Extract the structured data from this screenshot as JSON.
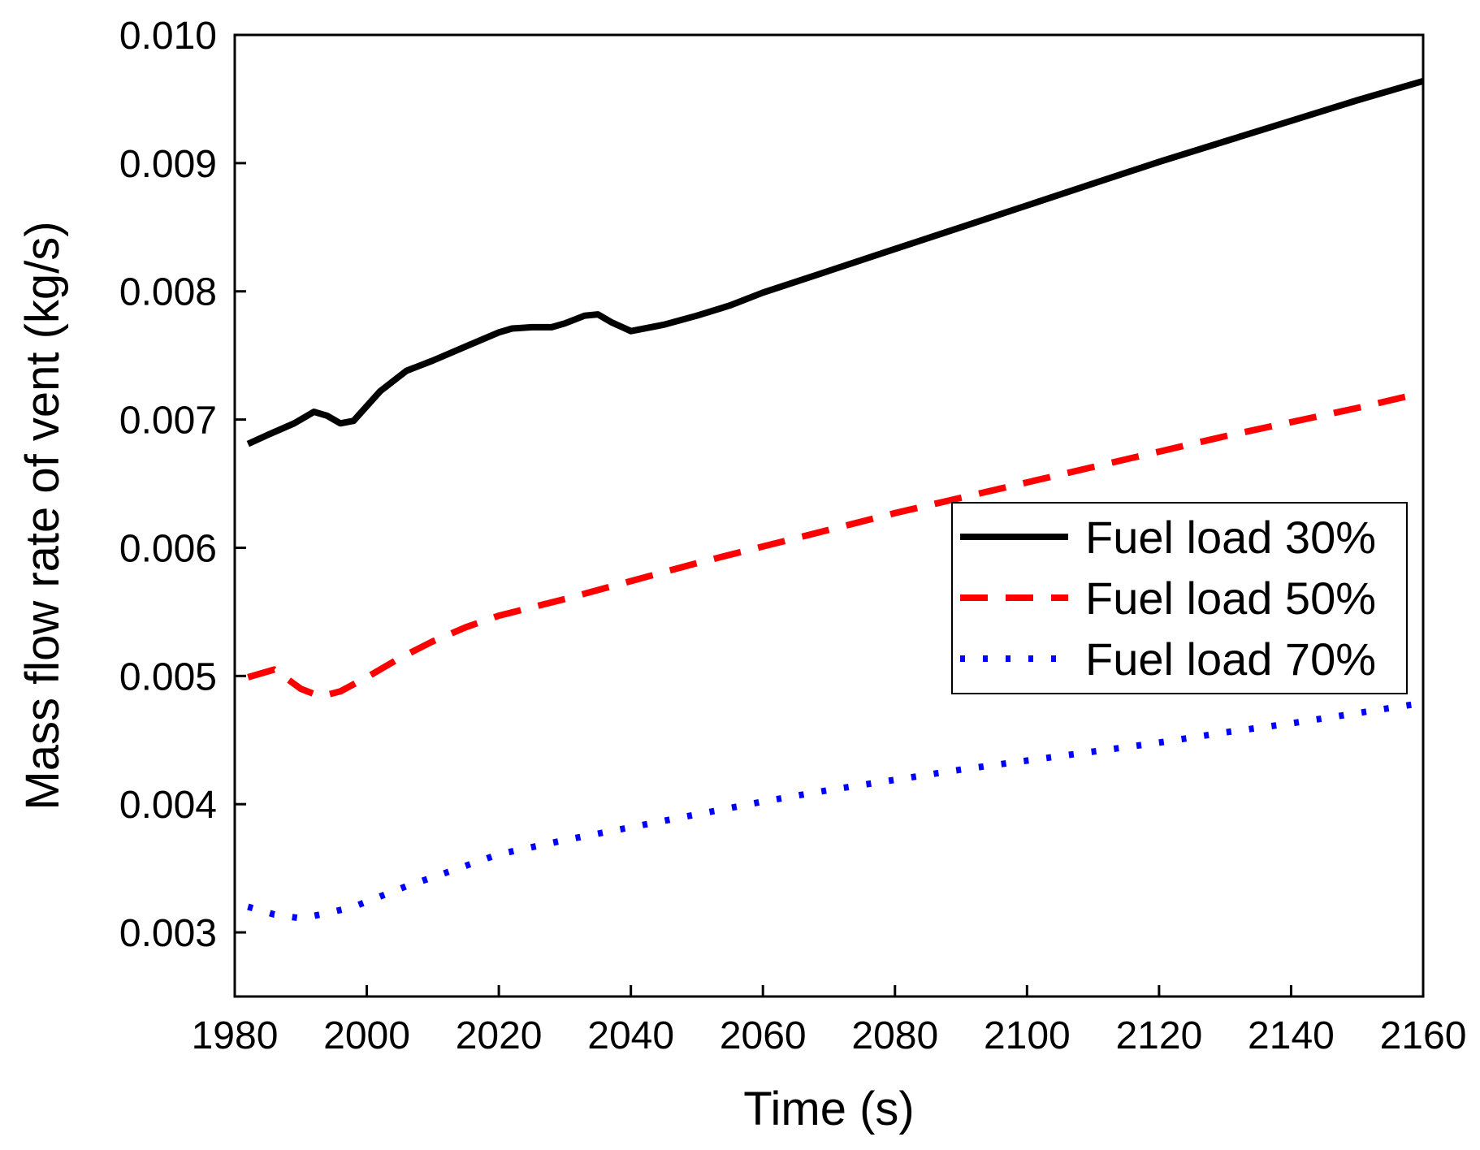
{
  "chart_data": {
    "type": "line",
    "title": "",
    "xlabel": "Time (s)",
    "ylabel": "Mass flow rate of vent (kg/s)",
    "xlim": [
      1980,
      2160
    ],
    "ylim": [
      0.0025,
      0.01
    ],
    "xticks": [
      1980,
      2000,
      2020,
      2040,
      2060,
      2080,
      2100,
      2120,
      2140,
      2160
    ],
    "xtick_labels": [
      "1980",
      "2000",
      "2020",
      "2040",
      "2060",
      "2080",
      "2100",
      "2120",
      "2140",
      "2160"
    ],
    "yticks": [
      0.003,
      0.004,
      0.005,
      0.006,
      0.007,
      0.008,
      0.009,
      0.01
    ],
    "ytick_labels": [
      "0.003",
      "0.004",
      "0.005",
      "0.006",
      "0.007",
      "0.008",
      "0.009",
      "0.010"
    ],
    "grid": false,
    "legend_position": "right-center",
    "series": [
      {
        "name": "Fuel load 30%",
        "color": "#000000",
        "style": "solid",
        "x": [
          1982,
          1985,
          1989,
          1992,
          1994,
          1996,
          1998,
          2002,
          2006,
          2010,
          2015,
          2020,
          2022,
          2025,
          2028,
          2030,
          2033,
          2035,
          2037,
          2040,
          2045,
          2050,
          2055,
          2060,
          2070,
          2080,
          2090,
          2100,
          2110,
          2120,
          2130,
          2140,
          2150,
          2160
        ],
        "y": [
          0.00681,
          0.00688,
          0.00697,
          0.00706,
          0.00703,
          0.00697,
          0.00699,
          0.00722,
          0.00738,
          0.00746,
          0.00757,
          0.00768,
          0.00771,
          0.00772,
          0.00772,
          0.00775,
          0.00781,
          0.00782,
          0.00776,
          0.00769,
          0.00774,
          0.00781,
          0.00789,
          0.00799,
          0.00816,
          0.00833,
          0.0085,
          0.00867,
          0.00884,
          0.00901,
          0.00917,
          0.00933,
          0.00949,
          0.00964
        ]
      },
      {
        "name": "Fuel load 50%",
        "color": "#ff0000",
        "style": "dashed",
        "x": [
          1982,
          1986,
          1990,
          1993,
          1996,
          2000,
          2005,
          2010,
          2015,
          2020,
          2030,
          2040,
          2050,
          2060,
          2070,
          2080,
          2090,
          2100,
          2110,
          2120,
          2130,
          2140,
          2150,
          2160
        ],
        "y": [
          0.00499,
          0.00505,
          0.0049,
          0.00484,
          0.00488,
          0.00499,
          0.00514,
          0.00527,
          0.00538,
          0.00547,
          0.0056,
          0.00574,
          0.00588,
          0.00601,
          0.00614,
          0.00627,
          0.00639,
          0.00651,
          0.00663,
          0.00675,
          0.00687,
          0.00698,
          0.00709,
          0.00721
        ]
      },
      {
        "name": "Fuel load 70%",
        "color": "#0000ff",
        "style": "dotted",
        "x": [
          1982,
          1986,
          1990,
          1994,
          1998,
          2002,
          2006,
          2010,
          2015,
          2020,
          2030,
          2040,
          2050,
          2060,
          2070,
          2080,
          2090,
          2100,
          2110,
          2120,
          2130,
          2140,
          2150,
          2160
        ],
        "y": [
          0.0032,
          0.00314,
          0.00311,
          0.00315,
          0.0032,
          0.00328,
          0.00336,
          0.00343,
          0.00352,
          0.00361,
          0.00372,
          0.00382,
          0.00392,
          0.00402,
          0.00411,
          0.00419,
          0.00427,
          0.00434,
          0.00441,
          0.00448,
          0.00456,
          0.00463,
          0.00471,
          0.00479
        ]
      }
    ]
  }
}
